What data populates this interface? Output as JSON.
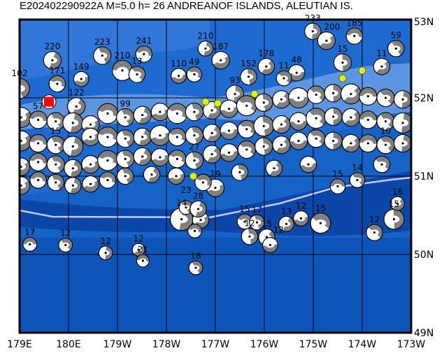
{
  "title": "E202402290922A M=5.0 h= 26 ANDREANOF ISLANDS, ALEUTIAN IS.",
  "colors": {
    "deep_ocean": "#0d50b4",
    "mid_ocean": "#1563c6",
    "shallow": "#3e7fe0",
    "shelf": "#8fb8f0",
    "island": "#e8f0ff",
    "volcano": "#d8f020",
    "trench": "#c8c8ff",
    "target_event": "#ff0000",
    "beachball_fill": "#808080"
  },
  "map": {
    "lon_range": [
      179,
      187
    ],
    "lat_range": [
      49,
      53
    ],
    "lon_ticks": [
      "179E",
      "180E",
      "179W",
      "178W",
      "177W",
      "176W",
      "175W",
      "174W",
      "173W"
    ],
    "lat_ticks": [
      "53N",
      "52N",
      "51N",
      "50N",
      "49N"
    ]
  },
  "target_event": {
    "lon": 179.6,
    "lat": 51.95,
    "depth": "26",
    "mag": 5.0
  },
  "events": [
    [
      179.21,
      50.13,
      "17",
      5.3
    ],
    [
      179.94,
      50.12,
      "12",
      5.3
    ],
    [
      -179.24,
      50.02,
      "12",
      5.3
    ],
    [
      -178.57,
      50.06,
      "12",
      5.2
    ],
    [
      -178.48,
      49.92,
      "21",
      5.2
    ],
    [
      -177.4,
      49.83,
      "18",
      5.3
    ],
    [
      -177.69,
      50.45,
      "14",
      6.0
    ],
    [
      -177.3,
      50.44,
      "",
      5.5
    ],
    [
      -177.42,
      50.3,
      "",
      5.3
    ],
    [
      -177.6,
      50.6,
      "23",
      5.3
    ],
    [
      -177.35,
      50.58,
      "28",
      5.5
    ],
    [
      -177.0,
      50.85,
      "19",
      5.6
    ],
    [
      -176.4,
      50.42,
      "15",
      5.4
    ],
    [
      -176.15,
      50.41,
      "17",
      5.4
    ],
    [
      -175.55,
      50.39,
      "13",
      5.4
    ],
    [
      -175.25,
      50.46,
      "12",
      5.4
    ],
    [
      -174.85,
      50.4,
      "15",
      5.8
    ],
    [
      -176.3,
      50.23,
      "12",
      5.5
    ],
    [
      -175.95,
      50.22,
      "15",
      5.5
    ],
    [
      -175.88,
      50.12,
      "12",
      5.4
    ],
    [
      -173.75,
      50.28,
      "12",
      5.5
    ],
    [
      -173.35,
      50.45,
      "15",
      5.8
    ],
    [
      -173.28,
      50.65,
      "16",
      5.3
    ],
    [
      -174.5,
      50.87,
      "15",
      5.4
    ],
    [
      -174.1,
      50.95,
      "14",
      5.4
    ],
    [
      -175.01,
      52.85,
      "233",
      5.5
    ],
    [
      -174.73,
      52.73,
      "200",
      5.6
    ],
    [
      -174.16,
      52.79,
      "185",
      5.5
    ],
    [
      -173.31,
      52.63,
      "59",
      5.5
    ],
    [
      -177.2,
      52.63,
      "210",
      5.4
    ],
    [
      -176.89,
      52.48,
      "187",
      5.6
    ],
    [
      -178.46,
      52.56,
      "241",
      5.5
    ],
    [
      -179.31,
      52.54,
      "223",
      5.6
    ],
    [
      179.67,
      52.48,
      "220",
      5.6
    ],
    [
      -179.74,
      52.24,
      "149",
      5.4
    ],
    [
      179.77,
      52.18,
      "171",
      5.5
    ],
    [
      179.0,
      52.12,
      "102",
      5.8
    ],
    [
      -179.84,
      51.89,
      "122",
      5.6
    ],
    [
      -177.75,
      52.28,
      "110",
      5.4
    ],
    [
      -177.43,
      52.3,
      "49",
      5.4
    ],
    [
      -176.32,
      52.27,
      "152",
      5.5
    ],
    [
      -175.96,
      52.4,
      "178",
      5.5
    ],
    [
      -175.34,
      52.32,
      "48",
      5.5
    ],
    [
      -175.6,
      52.25,
      "11",
      5.4
    ],
    [
      -174.4,
      52.45,
      "15",
      5.6
    ],
    [
      -173.6,
      52.4,
      "11",
      5.5
    ],
    [
      -178.9,
      52.35,
      "210",
      5.8
    ],
    [
      -178.6,
      52.3,
      "13",
      5.5
    ],
    [
      -176.6,
      52.05,
      "93",
      5.6
    ],
    [
      179.03,
      51.75,
      "",
      5.8
    ],
    [
      179.38,
      51.72,
      "57",
      5.6
    ],
    [
      179.74,
      51.7,
      "",
      5.6
    ],
    [
      -179.91,
      51.68,
      "",
      5.8
    ],
    [
      -179.55,
      51.66,
      "",
      5.6
    ],
    [
      -179.2,
      51.8,
      "",
      5.8
    ],
    [
      -178.84,
      51.75,
      "99",
      5.6
    ],
    [
      -178.49,
      51.78,
      "",
      5.6
    ],
    [
      -178.13,
      51.82,
      "",
      5.6
    ],
    [
      -177.78,
      51.8,
      "",
      5.8
    ],
    [
      -177.43,
      51.82,
      "",
      5.6
    ],
    [
      -177.07,
      51.84,
      "",
      5.6
    ],
    [
      -176.72,
      51.86,
      "",
      5.6
    ],
    [
      -176.36,
      51.9,
      "",
      5.8
    ],
    [
      -176.01,
      51.94,
      "",
      5.6
    ],
    [
      -175.65,
      51.98,
      "",
      5.6
    ],
    [
      -175.3,
      52.0,
      "",
      5.8
    ],
    [
      -174.94,
      52.04,
      "",
      5.6
    ],
    [
      -174.59,
      52.06,
      "",
      5.6
    ],
    [
      -174.23,
      52.05,
      "",
      5.8
    ],
    [
      -173.88,
      52.02,
      "",
      5.6
    ],
    [
      -173.52,
      52.0,
      "",
      5.6
    ],
    [
      -173.17,
      51.98,
      "",
      5.6
    ],
    [
      179.03,
      51.45,
      "",
      5.8
    ],
    [
      179.38,
      51.42,
      "",
      5.6
    ],
    [
      179.74,
      51.4,
      "15",
      5.6
    ],
    [
      -179.91,
      51.38,
      "",
      5.8
    ],
    [
      -179.55,
      51.5,
      "",
      5.6
    ],
    [
      -179.2,
      51.5,
      "",
      5.8
    ],
    [
      -178.84,
      51.48,
      "",
      5.6
    ],
    [
      -178.49,
      51.5,
      "",
      5.6
    ],
    [
      -178.13,
      51.52,
      "",
      5.8
    ],
    [
      -177.78,
      51.5,
      "",
      5.6
    ],
    [
      -177.43,
      51.52,
      "",
      5.6
    ],
    [
      -177.07,
      51.55,
      "",
      5.6
    ],
    [
      -176.72,
      51.58,
      "",
      5.6
    ],
    [
      -176.36,
      51.6,
      "",
      5.6
    ],
    [
      -176.01,
      51.64,
      "",
      5.8
    ],
    [
      -175.65,
      51.66,
      "",
      5.6
    ],
    [
      -175.3,
      51.7,
      "",
      5.6
    ],
    [
      -174.94,
      51.74,
      "",
      5.8
    ],
    [
      -174.59,
      51.76,
      "",
      5.6
    ],
    [
      -174.23,
      51.75,
      "",
      5.6
    ],
    [
      -173.88,
      51.72,
      "",
      5.6
    ],
    [
      -173.52,
      51.7,
      "",
      5.6
    ],
    [
      -173.17,
      51.68,
      "",
      5.8
    ],
    [
      179.03,
      51.12,
      "",
      5.6
    ],
    [
      179.38,
      51.18,
      "",
      5.6
    ],
    [
      179.74,
      51.15,
      "",
      5.6
    ],
    [
      -179.91,
      51.1,
      "",
      5.6
    ],
    [
      -179.55,
      51.15,
      "",
      5.6
    ],
    [
      -179.2,
      51.2,
      "",
      5.8
    ],
    [
      -178.84,
      51.22,
      "",
      5.6
    ],
    [
      -178.49,
      51.25,
      "",
      5.6
    ],
    [
      -178.13,
      51.24,
      "",
      5.6
    ],
    [
      -177.78,
      51.22,
      "",
      5.6
    ],
    [
      -177.43,
      51.2,
      "27",
      5.6
    ],
    [
      -177.07,
      51.28,
      "",
      5.6
    ],
    [
      -176.72,
      51.3,
      "",
      5.6
    ],
    [
      -176.36,
      51.34,
      "",
      5.6
    ],
    [
      -176.01,
      51.38,
      "",
      5.6
    ],
    [
      -175.65,
      51.4,
      "",
      5.6
    ],
    [
      -175.3,
      51.45,
      "",
      5.6
    ],
    [
      -174.94,
      51.48,
      "",
      5.6
    ],
    [
      -174.59,
      51.45,
      "",
      5.6
    ],
    [
      -174.23,
      51.42,
      "",
      5.6
    ],
    [
      -173.88,
      51.42,
      "",
      5.6
    ],
    [
      -173.52,
      51.4,
      "10",
      5.6
    ],
    [
      -173.17,
      51.42,
      "",
      5.6
    ],
    [
      179.03,
      50.88,
      "",
      5.6
    ],
    [
      179.38,
      50.95,
      "",
      5.5
    ],
    [
      179.74,
      50.92,
      "",
      5.5
    ],
    [
      -179.91,
      50.88,
      "",
      5.5
    ],
    [
      -179.55,
      50.9,
      "",
      5.5
    ],
    [
      -179.2,
      50.95,
      "",
      5.5
    ],
    [
      -178.84,
      51.0,
      "",
      5.5
    ],
    [
      -178.3,
      51.02,
      "",
      5.5
    ],
    [
      -177.8,
      51.0,
      "",
      5.5
    ],
    [
      -177.25,
      50.92,
      "",
      5.5
    ],
    [
      -176.5,
      51.05,
      "",
      5.5
    ],
    [
      -175.8,
      51.1,
      "",
      5.5
    ],
    [
      -175.1,
      51.15,
      "",
      5.5
    ],
    [
      -173.6,
      51.15,
      "",
      5.5
    ]
  ],
  "volcanoes": [
    [
      -177.2,
      51.95
    ],
    [
      -176.95,
      51.93
    ],
    [
      -176.2,
      52.05
    ],
    [
      -174.4,
      52.25
    ],
    [
      -174.0,
      52.35
    ],
    [
      -177.45,
      51.0
    ]
  ]
}
